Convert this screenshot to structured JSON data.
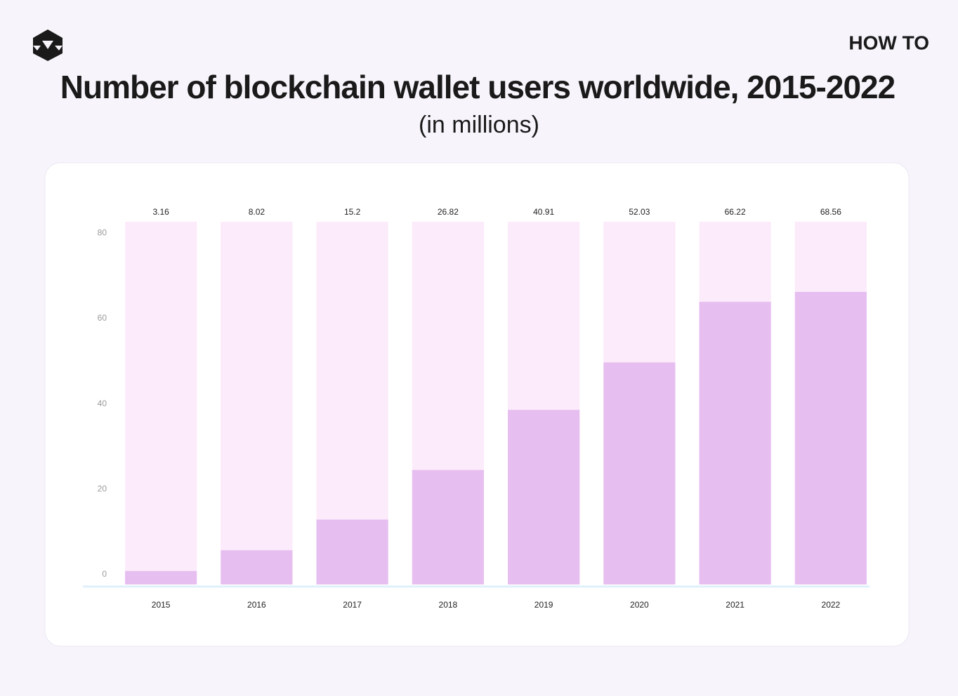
{
  "brand": "HOW TO",
  "chart_data": {
    "type": "bar",
    "title": "Number of blockchain wallet users worldwide, 2015-2022",
    "subtitle": "(in millions)",
    "categories": [
      "2015",
      "2016",
      "2017",
      "2018",
      "2019",
      "2020",
      "2021",
      "2022"
    ],
    "values": [
      3.16,
      8.02,
      15.2,
      26.82,
      40.91,
      52.03,
      66.22,
      68.56
    ],
    "color": "#e6bff0",
    "ylim": [
      0,
      85
    ],
    "yticks": [
      0,
      20,
      40,
      60,
      80
    ],
    "grid": false
  }
}
